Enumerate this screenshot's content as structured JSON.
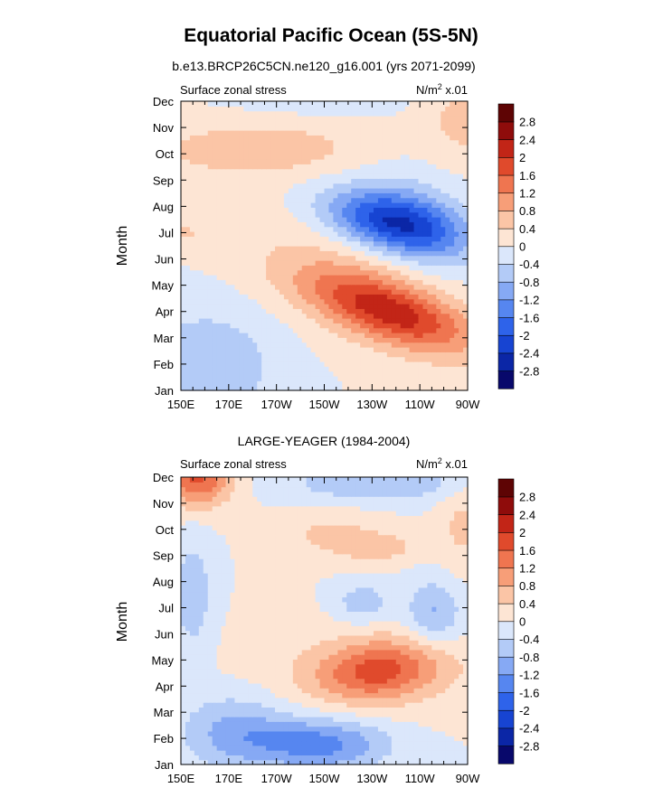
{
  "figure": {
    "title": "Equatorial Pacific Ocean (5S-5N)"
  },
  "chart_data": [
    {
      "type": "heatmap",
      "subtitle": "b.e13.BRCP26C5CN.ne120_g16.001 (yrs 2071-2099)",
      "left_label": "Surface zonal stress",
      "right_label": "N/m",
      "units_sup": "2",
      "units_tail": " x.01",
      "ylabel": "Month",
      "xlabel": "",
      "x_ticks": [
        "150E",
        "170E",
        "170W",
        "150W",
        "130W",
        "110W",
        "90W"
      ],
      "x_range": [
        150,
        270
      ],
      "y_ticks": [
        "Jan",
        "Feb",
        "Mar",
        "Apr",
        "May",
        "Jun",
        "Jul",
        "Aug",
        "Sep",
        "Oct",
        "Nov",
        "Dec"
      ],
      "legend_placement": "right",
      "grid": false,
      "levels": [
        "2.8",
        "2.4",
        "2",
        "1.6",
        "1.2",
        "0.8",
        "0.4",
        "0",
        "-0.4",
        "-0.8",
        "-1.2",
        "-1.6",
        "-2",
        "-2.4",
        "-2.8"
      ],
      "level_values": [
        -2.8,
        -2.4,
        -2,
        -1.6,
        -1.2,
        -0.8,
        -0.4,
        0,
        0.4,
        0.8,
        1.2,
        1.6,
        2,
        2.4,
        2.8
      ],
      "colors": [
        "#08086b",
        "#0b26a6",
        "#1744d2",
        "#2e63ea",
        "#5686f0",
        "#86a9f4",
        "#b3cbf7",
        "#dbe7fb",
        "#fde5d4",
        "#fbc5a6",
        "#f79e78",
        "#ef7550",
        "#e04a2c",
        "#c22517",
        "#8f0c0b",
        "#5e0404"
      ],
      "features": [
        {
          "x0": 239,
          "y0": 6.4,
          "sx": 28,
          "sy": 1.1,
          "tilt": -0.018,
          "amp": -2.2
        },
        {
          "x0": 250,
          "y0": 6.5,
          "sx": 24,
          "sy": 1.9,
          "tilt": -0.03,
          "amp": -0.5
        },
        {
          "x0": 238,
          "y0": 3.0,
          "sx": 34,
          "sy": 1.15,
          "tilt": -0.028,
          "amp": 1.9
        },
        {
          "x0": 222,
          "y0": 4.0,
          "sx": 48,
          "sy": 2.2,
          "tilt": -0.03,
          "amp": 0.5
        },
        {
          "x0": 162,
          "y0": 1.0,
          "sx": 30,
          "sy": 2.3,
          "tilt": 0,
          "amp": -0.7
        },
        {
          "x0": 183,
          "y0": 9.2,
          "sx": 45,
          "sy": 1.1,
          "tilt": 0,
          "amp": 0.7
        },
        {
          "x0": 205,
          "y0": 11.3,
          "sx": 35,
          "sy": 0.9,
          "tilt": 0,
          "amp": -0.3
        },
        {
          "x0": 268,
          "y0": 10.3,
          "sx": 16,
          "sy": 1.5,
          "tilt": 0,
          "amp": 0.55
        },
        {
          "x0": 152,
          "y0": 6.0,
          "sx": 7,
          "sy": 0.5,
          "tilt": 0,
          "amp": 0.4
        }
      ]
    },
    {
      "type": "heatmap",
      "subtitle": "LARGE-YEAGER (1984-2004)",
      "left_label": "Surface zonal stress",
      "right_label": "N/m",
      "units_sup": "2",
      "units_tail": " x.01",
      "ylabel": "Month",
      "xlabel": "",
      "x_ticks": [
        "150E",
        "170E",
        "170W",
        "150W",
        "130W",
        "110W",
        "90W"
      ],
      "x_range": [
        150,
        270
      ],
      "y_ticks": [
        "Jan",
        "Feb",
        "Mar",
        "Apr",
        "May",
        "Jun",
        "Jul",
        "Aug",
        "Sep",
        "Oct",
        "Nov",
        "Dec"
      ],
      "legend_placement": "right",
      "grid": false,
      "levels": [
        "2.8",
        "2.4",
        "2",
        "1.6",
        "1.2",
        "0.8",
        "0.4",
        "0",
        "-0.4",
        "-0.8",
        "-1.2",
        "-1.6",
        "-2",
        "-2.4",
        "-2.8"
      ],
      "level_values": [
        -2.8,
        -2.4,
        -2,
        -1.6,
        -1.2,
        -0.8,
        -0.4,
        0,
        0.4,
        0.8,
        1.2,
        1.6,
        2,
        2.4,
        2.8
      ],
      "colors": [
        "#08086b",
        "#0b26a6",
        "#1744d2",
        "#2e63ea",
        "#5686f0",
        "#86a9f4",
        "#b3cbf7",
        "#dbe7fb",
        "#fde5d4",
        "#fbc5a6",
        "#f79e78",
        "#ef7550",
        "#e04a2c",
        "#c22517",
        "#8f0c0b",
        "#5e0404"
      ],
      "features": [
        {
          "x0": 157,
          "y0": 11.0,
          "sx": 14,
          "sy": 1.1,
          "tilt": 0,
          "amp": 1.7
        },
        {
          "x0": 233,
          "y0": 3.6,
          "sx": 26,
          "sy": 1.1,
          "tilt": 0.008,
          "amp": 1.5
        },
        {
          "x0": 228,
          "y0": 3.8,
          "sx": 48,
          "sy": 1.9,
          "tilt": 0,
          "amp": 0.35
        },
        {
          "x0": 208,
          "y0": 0.8,
          "sx": 28,
          "sy": 1.0,
          "tilt": 0,
          "amp": -1.4
        },
        {
          "x0": 172,
          "y0": 1.3,
          "sx": 22,
          "sy": 1.4,
          "tilt": 0,
          "amp": -0.9
        },
        {
          "x0": 233,
          "y0": 10.8,
          "sx": 38,
          "sy": 0.7,
          "tilt": 0,
          "amp": -0.8
        },
        {
          "x0": 256,
          "y0": 5.8,
          "sx": 12,
          "sy": 1.3,
          "tilt": 0,
          "amp": -0.9
        },
        {
          "x0": 226,
          "y0": 6.2,
          "sx": 12,
          "sy": 0.8,
          "tilt": 0,
          "amp": -0.7
        },
        {
          "x0": 155,
          "y0": 6.5,
          "sx": 8,
          "sy": 2.2,
          "tilt": 0,
          "amp": -0.7
        },
        {
          "x0": 213,
          "y0": 8.8,
          "sx": 22,
          "sy": 0.9,
          "tilt": 0,
          "amp": 0.5
        },
        {
          "x0": 234,
          "y0": 8.3,
          "sx": 16,
          "sy": 0.55,
          "tilt": 0,
          "amp": 0.55
        },
        {
          "x0": 268,
          "y0": 9.2,
          "sx": 10,
          "sy": 1.8,
          "tilt": 0,
          "amp": 0.5
        }
      ]
    }
  ]
}
